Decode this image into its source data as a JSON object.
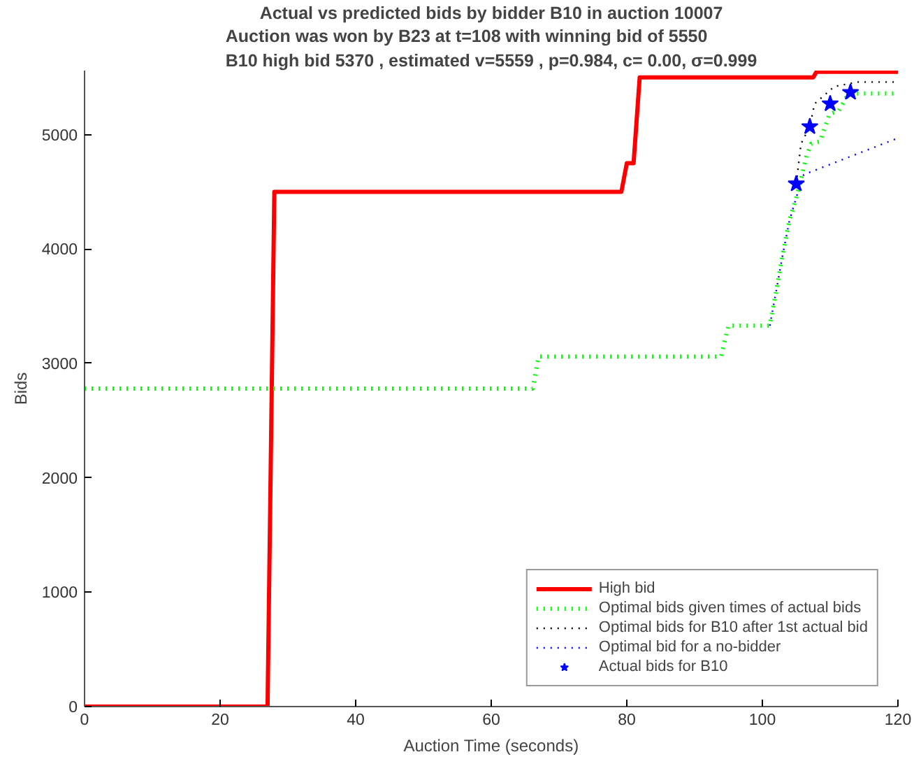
{
  "chart_data": {
    "type": "line",
    "title": "Actual vs predicted bids by bidder B10 in auction 10007",
    "subtitle": "Auction was won by B23 at t=108 with winning bid of 5550\nB10 high bid 5370 , estimated v=5559 , p=0.984, c= 0.00, σ=0.999",
    "xlabel": "Auction Time (seconds)",
    "ylabel": "Bids",
    "xlim": [
      0,
      120
    ],
    "ylim": [
      0,
      5560
    ],
    "xticks": [
      0,
      20,
      40,
      60,
      80,
      100,
      120
    ],
    "yticks": [
      0,
      1000,
      2000,
      3000,
      4000,
      5000
    ],
    "grid": false,
    "legend": "bottom right",
    "series": [
      {
        "name": "High bid",
        "color": "#ff0000",
        "line_style": "solid",
        "marker": "none",
        "x": [
          0,
          27,
          28,
          79.2,
          80,
          81,
          81.9,
          107.5,
          108,
          120
        ],
        "values": [
          0,
          0,
          4500,
          4500,
          4750,
          4750,
          5500,
          5500,
          5550,
          5550
        ]
      },
      {
        "name": "Optimal bids given times of actual bids",
        "color": "#00ff00",
        "line_style": "dotted",
        "marker": "none",
        "x": [
          0,
          66.1,
          67,
          93.9,
          95,
          101.1,
          102,
          103,
          104,
          105,
          105.5,
          106.5,
          107.2,
          108.5,
          109.9,
          111.3,
          112.7,
          120
        ],
        "values": [
          2780,
          2780,
          3060,
          3060,
          3330,
          3330,
          3620,
          3950,
          4250,
          4450,
          4560,
          4810,
          4920,
          4940,
          5180,
          5210,
          5360,
          5360
        ]
      },
      {
        "name": "Optimal bids for B10 after 1st actual bid",
        "color": "#000000",
        "line_style": "dotted",
        "marker": "none",
        "x": [
          105,
          105.7,
          107,
          107.7,
          110.6,
          114,
          120
        ],
        "values": [
          4570,
          4920,
          5070,
          5270,
          5420,
          5460,
          5460
        ]
      },
      {
        "name": "Optimal bid for a no-bidder",
        "color": "#0000ff",
        "line_style": "dotted",
        "marker": "none",
        "x": [
          101.1,
          102,
          103,
          104,
          105,
          106.1,
          120
        ],
        "values": [
          3330,
          3620,
          3950,
          4250,
          4450,
          4650,
          4970
        ]
      },
      {
        "name": "Actual bids for B10",
        "type": "scatter",
        "color": "#0000ff",
        "marker": "star",
        "x": [
          105,
          107,
          110,
          113
        ],
        "values": [
          4570,
          5070,
          5270,
          5370
        ]
      }
    ]
  }
}
